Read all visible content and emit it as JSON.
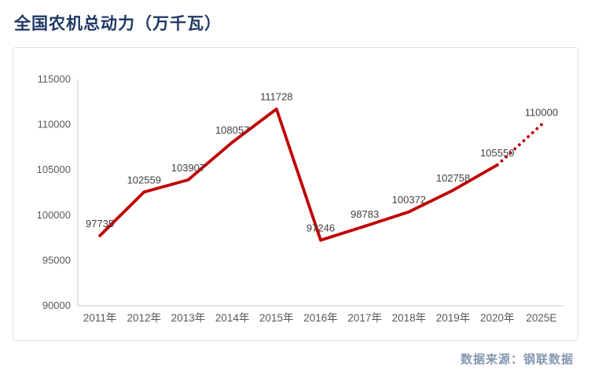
{
  "header": {
    "title": "全国农机总动力（万千瓦）"
  },
  "footer": {
    "source": "数据来源：钢联数据"
  },
  "colors": {
    "title": "#1F3864",
    "source": "#8497B0",
    "line": "#C00000",
    "axis_text": "#595959",
    "label_text": "#404040",
    "frame_border": "#E3E3E3",
    "axis_line": "#C9C9C9"
  },
  "chart_data": {
    "type": "line",
    "title": "全国农机总动力（万千瓦）",
    "categories": [
      "2011年",
      "2012年",
      "2013年",
      "2014年",
      "2015年",
      "2016年",
      "2017年",
      "2018年",
      "2019年",
      "2020年",
      "2025E"
    ],
    "values": [
      97735,
      102559,
      103907,
      108057,
      111728,
      97246,
      98783,
      100372,
      102758,
      105550,
      110000
    ],
    "solid_through_index": 9,
    "forecast_segment": {
      "from": "2020年",
      "to": "2025E",
      "style": "dotted"
    },
    "xlabel": "",
    "ylabel": "",
    "ylim": [
      90000,
      115000
    ],
    "ytick_step": 5000,
    "grid": false,
    "legend": "none",
    "data_labels": true,
    "source": "数据来源：钢联数据"
  }
}
